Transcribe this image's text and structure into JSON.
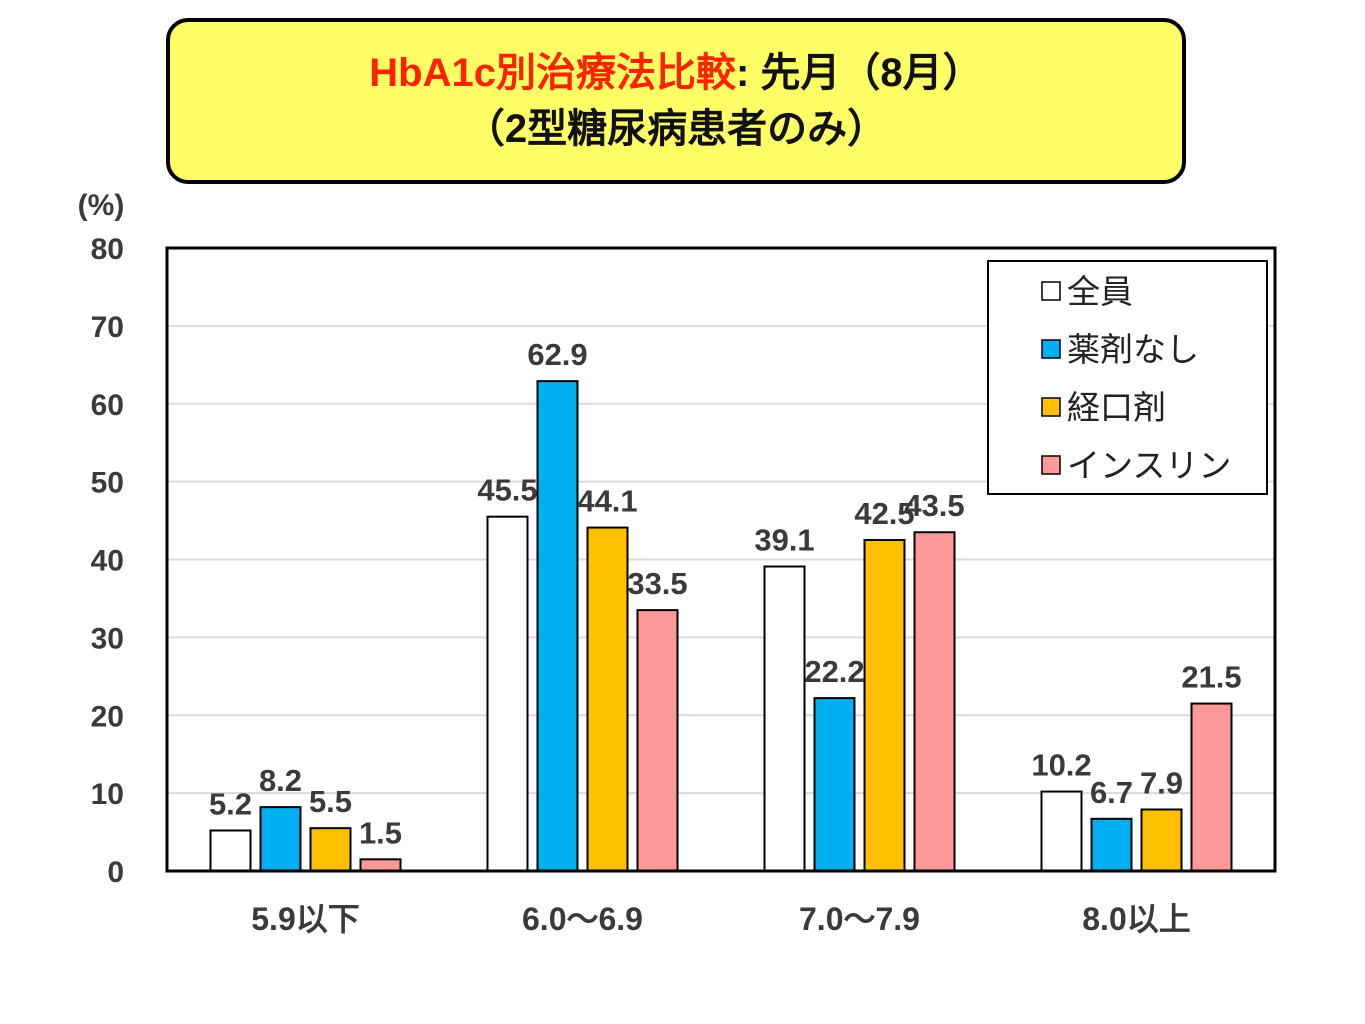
{
  "title": {
    "line1_red": "HbA1c別治療法比較",
    "line1_black": ": 先月（8月）",
    "line2": "（2型糖尿病患者のみ）"
  },
  "chart_data": {
    "type": "bar",
    "ylabel": "(%)",
    "ylim": [
      0,
      80
    ],
    "yticks": [
      0,
      10,
      20,
      30,
      40,
      50,
      60,
      70,
      80
    ],
    "grid": true,
    "legend_position": "top-right",
    "categories": [
      "5.9以下",
      "6.0～6.9",
      "7.0～7.9",
      "8.0以上"
    ],
    "series": [
      {
        "name": "全員",
        "color": "#ffffff",
        "values": [
          5.2,
          45.5,
          39.1,
          10.2
        ]
      },
      {
        "name": "薬剤なし",
        "color": "#00b0f0",
        "values": [
          8.2,
          62.9,
          22.2,
          6.7
        ]
      },
      {
        "name": "経口剤",
        "color": "#ffc000",
        "values": [
          5.5,
          44.1,
          42.5,
          7.9
        ]
      },
      {
        "name": "インスリン",
        "color": "#ff9999",
        "values": [
          1.5,
          33.5,
          43.5,
          21.5
        ]
      }
    ]
  }
}
